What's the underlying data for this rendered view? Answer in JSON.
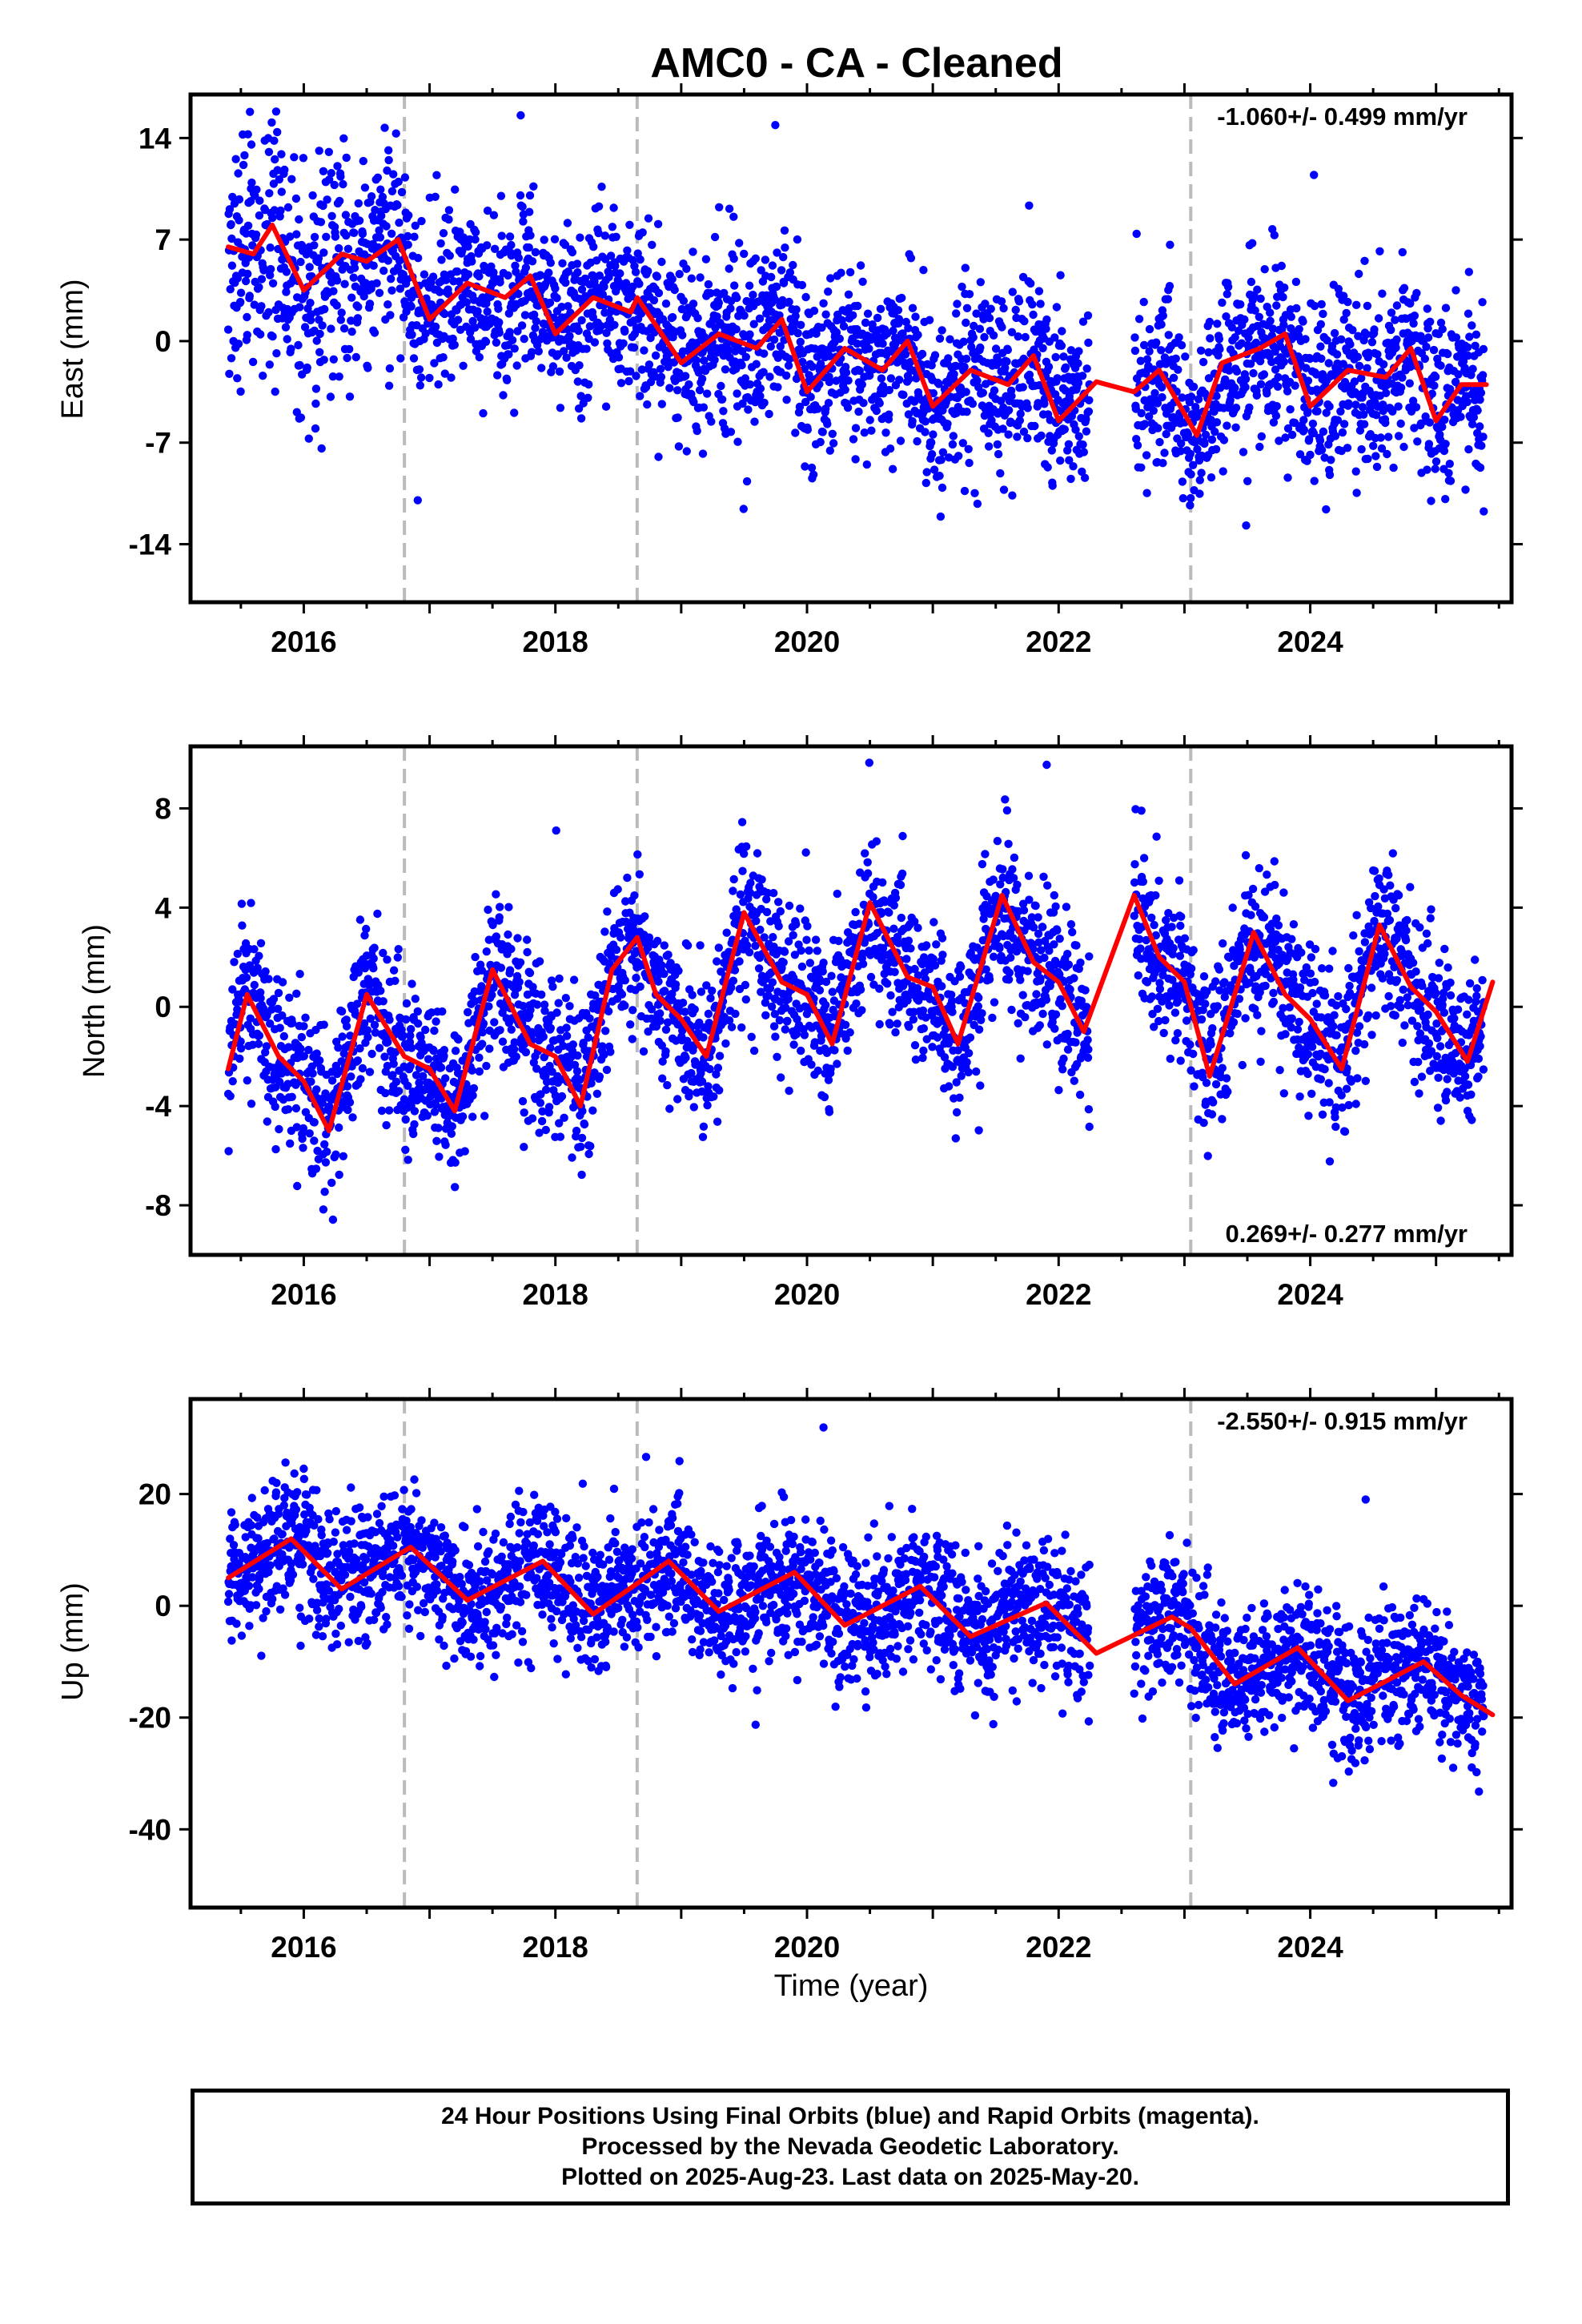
{
  "figure": {
    "title": "AMC0  - CA - Cleaned",
    "xlabel": "Time (year)",
    "footer": [
      "24 Hour Positions Using Final Orbits (blue) and Rapid Orbits (magenta).",
      "Processed by the Nevada Geodetic Laboratory.",
      "Plotted on 2025-Aug-23. Last data on 2025-May-20."
    ],
    "colors": {
      "points": "#0000ff",
      "fit": "#ff0000",
      "events": "#bbbbbb",
      "frame": "#000000"
    }
  },
  "chart_data": [
    {
      "type": "scatter",
      "ylabel": "East (mm)",
      "rate": "-1.060+/- 0.499 mm/yr",
      "rate_position": "top-right",
      "xlim": [
        2015.1,
        2025.6
      ],
      "ylim": [
        -18,
        17
      ],
      "xticks": [
        2016,
        2018,
        2020,
        2022,
        2024
      ],
      "xtick_labels": [
        "2016",
        "2018",
        "2020",
        "2022",
        "2024"
      ],
      "yticks": [
        14,
        7,
        0,
        -7,
        -14
      ],
      "ytick_labels": [
        "14",
        "7",
        "0",
        "-7",
        "-14"
      ],
      "event_lines": [
        2016.8,
        2018.65,
        2023.05
      ],
      "data_gap": [
        2022.25,
        2022.6
      ],
      "model": {
        "intercept_2015_4": 7.0,
        "rate": -1.06,
        "seasonal_amplitude": 1.5,
        "seasonal_peak_fraction": 0.6,
        "noise_sd": 3.0,
        "scatter_sd_extra_start": 2.5
      },
      "fit_curve": {
        "x": [
          2015.4,
          2015.6,
          2015.75,
          2016.0,
          2016.3,
          2016.5,
          2016.75,
          2017.0,
          2017.3,
          2017.6,
          2017.8,
          2018.0,
          2018.3,
          2018.6,
          2018.65,
          2019.0,
          2019.3,
          2019.6,
          2019.8,
          2020.0,
          2020.3,
          2020.6,
          2020.8,
          2021.0,
          2021.3,
          2021.6,
          2021.8,
          2022.0,
          2022.3,
          2022.6,
          2022.8,
          2023.0,
          2023.1,
          2023.3,
          2023.6,
          2023.8,
          2024.0,
          2024.3,
          2024.6,
          2024.8,
          2025.0,
          2025.2,
          2025.4
        ],
        "y": [
          6.5,
          6.0,
          8.0,
          3.5,
          6.0,
          5.5,
          7.0,
          1.5,
          4.0,
          3.0,
          4.5,
          0.5,
          3.0,
          2.0,
          3.0,
          -1.5,
          0.5,
          -0.5,
          1.5,
          -3.5,
          -0.5,
          -2.0,
          0.0,
          -4.5,
          -2.0,
          -3.0,
          -1.0,
          -5.5,
          -2.8,
          -3.5,
          -2.0,
          -5.0,
          -6.5,
          -1.5,
          -0.5,
          0.5,
          -4.5,
          -2.0,
          -2.5,
          -0.5,
          -5.5,
          -3.0,
          -3.0
        ]
      }
    },
    {
      "type": "scatter",
      "ylabel": "North (mm)",
      "rate": "0.269+/- 0.277 mm/yr",
      "rate_position": "bottom-right",
      "xlim": [
        2015.1,
        2025.6
      ],
      "ylim": [
        -10,
        10.5
      ],
      "xticks": [
        2016,
        2018,
        2020,
        2022,
        2024
      ],
      "xtick_labels": [
        "2016",
        "2018",
        "2020",
        "2022",
        "2024"
      ],
      "yticks": [
        8,
        4,
        0,
        -4,
        -8
      ],
      "ytick_labels": [
        "8",
        "4",
        "0",
        "-4",
        "-8"
      ],
      "event_lines": [
        2016.8,
        2018.65,
        2023.05
      ],
      "data_gap": [
        2022.25,
        2022.6
      ],
      "model": {
        "intercept_2015_4": -1.5,
        "rate": 0.27,
        "seasonal_amplitude": 3.2,
        "seasonal_peak_fraction": 0.55,
        "noise_sd": 1.6,
        "scatter_sd_extra_start": 0.0
      },
      "fit_curve": {
        "x": [
          2015.4,
          2015.55,
          2015.8,
          2016.0,
          2016.2,
          2016.5,
          2016.8,
          2017.0,
          2017.2,
          2017.5,
          2017.8,
          2018.0,
          2018.2,
          2018.45,
          2018.65,
          2018.8,
          2019.0,
          2019.2,
          2019.5,
          2019.8,
          2020.0,
          2020.2,
          2020.5,
          2020.8,
          2021.0,
          2021.2,
          2021.55,
          2021.8,
          2022.0,
          2022.2,
          2022.6,
          2022.8,
          2023.0,
          2023.2,
          2023.55,
          2023.8,
          2024.0,
          2024.25,
          2024.55,
          2024.8,
          2025.0,
          2025.25,
          2025.45
        ],
        "y": [
          -2.5,
          0.5,
          -2.0,
          -3.0,
          -5.0,
          0.5,
          -2.0,
          -2.5,
          -4.2,
          1.5,
          -1.5,
          -2.0,
          -4.0,
          1.5,
          2.8,
          0.5,
          -0.5,
          -2.0,
          3.8,
          1.0,
          0.5,
          -1.5,
          4.2,
          1.2,
          0.8,
          -1.5,
          4.5,
          1.8,
          1.0,
          -1.0,
          4.5,
          2.0,
          1.0,
          -2.8,
          3.0,
          0.5,
          -0.5,
          -2.5,
          3.3,
          0.8,
          -0.2,
          -2.2,
          1.0
        ]
      }
    },
    {
      "type": "scatter",
      "ylabel": "Up (mm)",
      "rate": "-2.550+/- 0.915 mm/yr",
      "rate_position": "top-right",
      "xlim": [
        2015.1,
        2025.6
      ],
      "ylim": [
        -54,
        37
      ],
      "xticks": [
        2016,
        2018,
        2020,
        2022,
        2024
      ],
      "xtick_labels": [
        "2016",
        "2018",
        "2020",
        "2022",
        "2024"
      ],
      "yticks": [
        20,
        0,
        -20,
        -40
      ],
      "ytick_labels": [
        "20",
        "0",
        "-20",
        "-40"
      ],
      "event_lines": [
        2016.8,
        2018.65,
        2023.05
      ],
      "data_gap": [
        2022.25,
        2022.6
      ],
      "model": {
        "intercept_2015_4": 7.0,
        "rate": -2.55,
        "seasonal_amplitude": 4.5,
        "seasonal_peak_fraction": 0.9,
        "noise_sd": 6.0,
        "scatter_sd_extra_start": 0.0
      },
      "fit_curve": {
        "x": [
          2015.4,
          2015.9,
          2016.3,
          2016.85,
          2017.3,
          2017.9,
          2018.3,
          2018.65,
          2018.9,
          2019.3,
          2019.9,
          2020.3,
          2020.9,
          2021.3,
          2021.9,
          2022.3,
          2022.9,
          2023.05,
          2023.4,
          2023.9,
          2024.3,
          2024.9,
          2025.2,
          2025.45
        ],
        "y": [
          5.0,
          12.0,
          3.0,
          10.5,
          1.0,
          8.0,
          -1.5,
          4.0,
          8.0,
          -1.0,
          6.0,
          -3.5,
          3.5,
          -5.5,
          0.5,
          -8.5,
          -2.0,
          -4.0,
          -14.0,
          -7.5,
          -17.0,
          -10.0,
          -16.0,
          -19.5
        ]
      }
    }
  ]
}
